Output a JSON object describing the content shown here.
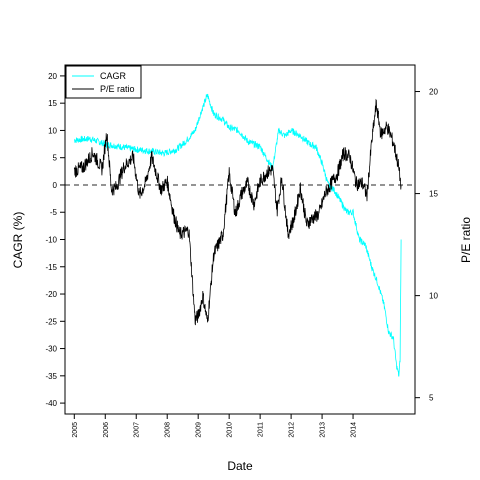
{
  "chart_data": {
    "type": "line",
    "xlabel": "Date",
    "ylabel_left": "CAGR (%)",
    "ylabel_right": "P/E ratio",
    "xlim": [
      2004.7,
      2016.0
    ],
    "ylim_left": [
      -42,
      22
    ],
    "ylim_right": [
      4.2,
      21.3
    ],
    "x_ticks": [
      "2005",
      "2006",
      "2007",
      "2008",
      "2009",
      "2010",
      "2011",
      "2012",
      "2013",
      "2014"
    ],
    "y_ticks_left": [
      20,
      15,
      10,
      5,
      0,
      -5,
      -10,
      -15,
      -20,
      -25,
      -30,
      -35,
      -40
    ],
    "y_ticks_right": [
      20,
      15,
      10,
      5
    ],
    "reference_line": {
      "axis": "left",
      "value": 0,
      "style": "dashed"
    },
    "legend": {
      "position": "top-left",
      "entries": [
        "CAGR",
        "P/E ratio"
      ]
    },
    "colors": {
      "CAGR": "#00ffff",
      "P/E ratio": "#000000",
      "reference": "#555555"
    },
    "series": [
      {
        "name": "CAGR",
        "axis": "left",
        "x": [
          2005.0,
          2005.5,
          2006.0,
          2006.5,
          2007.0,
          2007.5,
          2007.9,
          2008.3,
          2008.6,
          2008.9,
          2009.1,
          2009.3,
          2009.5,
          2009.8,
          2010.0,
          2010.3,
          2010.6,
          2011.0,
          2011.2,
          2011.4,
          2011.6,
          2011.8,
          2012.0,
          2012.3,
          2012.6,
          2012.8,
          2013.0,
          2013.2,
          2013.4,
          2013.6,
          2013.8,
          2014.0,
          2014.2,
          2014.4,
          2014.6,
          2014.8,
          2015.0,
          2015.15,
          2015.3,
          2015.4,
          2015.48,
          2015.52,
          2015.55
        ],
        "values": [
          8.2,
          8.5,
          7.5,
          7.0,
          6.5,
          6.2,
          5.8,
          6.5,
          8.0,
          10.0,
          13.5,
          16.5,
          13.0,
          12.0,
          10.5,
          10.0,
          8.0,
          7.0,
          5.0,
          3.0,
          10.0,
          9.0,
          10.0,
          9.0,
          7.5,
          7.0,
          4.0,
          0.0,
          -1.0,
          -3.0,
          -5.0,
          -5.0,
          -10.0,
          -11.0,
          -15.0,
          -18.0,
          -22.0,
          -27.0,
          -28.0,
          -33.0,
          -35.0,
          -32.0,
          -10.0
        ]
      },
      {
        "name": "P/E ratio",
        "axis": "right",
        "x": [
          2005.0,
          2005.3,
          2005.6,
          2005.9,
          2006.05,
          2006.2,
          2006.35,
          2006.6,
          2006.9,
          2007.1,
          2007.3,
          2007.5,
          2007.8,
          2008.0,
          2008.2,
          2008.4,
          2008.7,
          2008.9,
          2009.0,
          2009.15,
          2009.3,
          2009.5,
          2009.8,
          2010.0,
          2010.2,
          2010.4,
          2010.6,
          2010.8,
          2011.0,
          2011.2,
          2011.4,
          2011.55,
          2011.7,
          2011.9,
          2012.1,
          2012.3,
          2012.5,
          2012.7,
          2012.9,
          2013.1,
          2013.3,
          2013.5,
          2013.7,
          2013.9,
          2014.1,
          2014.3,
          2014.45,
          2014.6,
          2014.75,
          2014.9,
          2015.1,
          2015.3,
          2015.45,
          2015.55
        ],
        "values": [
          16.1,
          16.3,
          17.0,
          16.2,
          18.0,
          15.2,
          15.3,
          16.3,
          16.8,
          14.9,
          15.5,
          16.8,
          15.2,
          15.6,
          14.0,
          13.0,
          13.2,
          8.8,
          9.0,
          10.0,
          8.7,
          12.0,
          13.0,
          16.0,
          14.0,
          15.0,
          15.5,
          14.5,
          15.6,
          16.0,
          16.2,
          14.2,
          15.8,
          13.0,
          13.8,
          15.3,
          13.5,
          13.8,
          14.0,
          15.0,
          15.5,
          16.0,
          17.0,
          16.8,
          15.5,
          15.5,
          14.9,
          17.5,
          19.4,
          17.9,
          18.3,
          17.5,
          16.5,
          15.4
        ]
      }
    ]
  }
}
